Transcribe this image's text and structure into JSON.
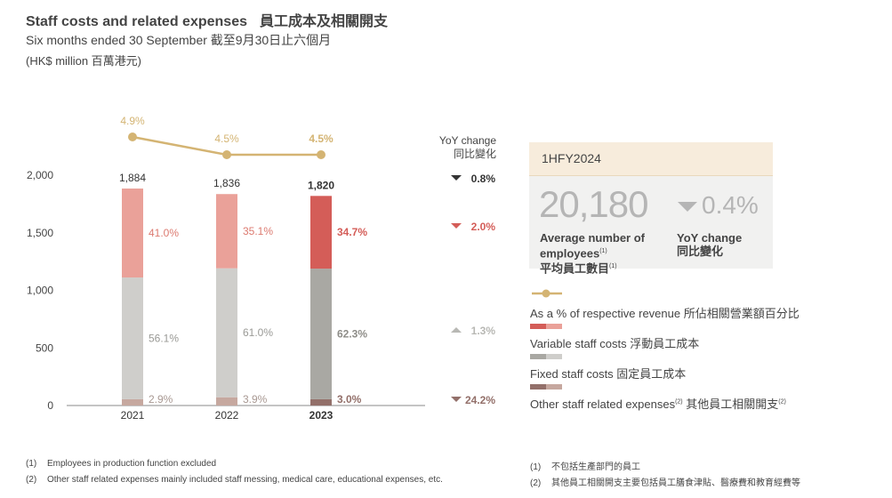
{
  "header": {
    "title_en": "Staff costs and related expenses",
    "title_zh": "員工成本及相關開支",
    "subtitle": "Six months ended 30 September 截至9月30日止六個月",
    "unit": "(HK$ million 百萬港元)"
  },
  "chart_data": {
    "type": "bar",
    "stacked": true,
    "categories": [
      "2021",
      "2022",
      "2023"
    ],
    "totals": [
      "1,884",
      "1,836",
      "1,820"
    ],
    "total_values": [
      1884,
      1836,
      1820
    ],
    "ylim": [
      0,
      2000
    ],
    "yticks": [
      0,
      500,
      1000,
      1500,
      2000
    ],
    "ytick_labels": [
      "0",
      "500",
      "1,000",
      "1,500",
      "2,000"
    ],
    "series": [
      {
        "name": "Other staff related expenses",
        "pct": [
          2.9,
          3.9,
          3.0
        ],
        "labels": [
          "2.9%",
          "3.9%",
          "3.0%"
        ],
        "colors": [
          "#c6a89f",
          "#c6a89f",
          "#93706a"
        ],
        "label_colors": [
          "#a89892",
          "#a89892",
          "#93706a"
        ]
      },
      {
        "name": "Fixed staff costs",
        "pct": [
          56.1,
          61.0,
          62.3
        ],
        "labels": [
          "56.1%",
          "61.0%",
          "62.3%"
        ],
        "colors": [
          "#cfcecb",
          "#cfcecb",
          "#a9a8a3"
        ],
        "label_colors": [
          "#9a9a96",
          "#9a9a96",
          "#8e8d88"
        ]
      },
      {
        "name": "Variable staff costs",
        "pct": [
          41.0,
          35.1,
          34.7
        ],
        "labels": [
          "41.0%",
          "35.1%",
          "34.7%"
        ],
        "colors": [
          "#eaa199",
          "#eaa199",
          "#d45d58"
        ],
        "label_colors": [
          "#dc7a70",
          "#dc7a70",
          "#d45d58"
        ]
      }
    ],
    "revenue_pct": {
      "values": [
        4.9,
        4.5,
        4.5
      ],
      "labels": [
        "4.9%",
        "4.5%",
        "4.5%"
      ],
      "color": "#d4b473"
    },
    "yoy": {
      "title": [
        "YoY change",
        "同比變化"
      ],
      "items": [
        {
          "label": "0.8%",
          "dir": "down",
          "color": "#333333"
        },
        {
          "label": "2.0%",
          "dir": "down",
          "color": "#d45d58"
        },
        {
          "label": "1.3%",
          "dir": "up",
          "color": "#b8b8b4"
        },
        {
          "label": "24.2%",
          "dir": "down",
          "color": "#93706a"
        }
      ]
    }
  },
  "panel": {
    "heading": "1HFY2024",
    "big_number": "20,180",
    "yoy_value": "0.4%",
    "avg_label_en_1": "Average number of",
    "avg_label_en_2": "employees",
    "avg_label_note": "(1)",
    "avg_label_zh": "平均員工數目",
    "yoy_label_en": "YoY change",
    "yoy_label_zh": "同比變化"
  },
  "legend": {
    "revenue": "As a % of respective revenue 所佔相關營業額百分比",
    "variable": "Variable staff costs 浮動員工成本",
    "fixed": "Fixed staff costs 固定員工成本",
    "other_en": "Other staff related expenses",
    "other_note": "(2)",
    "other_zh": "其他員工相關開支",
    "other_zh_note": "(2)",
    "colors": {
      "revenue": "#d4b473",
      "variable_a": "#d45d58",
      "variable_b": "#eaa199",
      "fixed_a": "#a9a8a3",
      "fixed_b": "#cfcecb",
      "other_a": "#93706a",
      "other_b": "#c6a89f"
    }
  },
  "footnotes": {
    "en": [
      {
        "num": "(1)",
        "text": "Employees in production function excluded"
      },
      {
        "num": "(2)",
        "text": "Other staff related expenses mainly included staff messing, medical care, educational expenses, etc."
      }
    ],
    "zh": [
      {
        "num": "(1)",
        "text": "不包括生產部門的員工"
      },
      {
        "num": "(2)",
        "text": "其他員工相關開支主要包括員工膳食津貼、醫療費和教育經費等"
      }
    ]
  }
}
